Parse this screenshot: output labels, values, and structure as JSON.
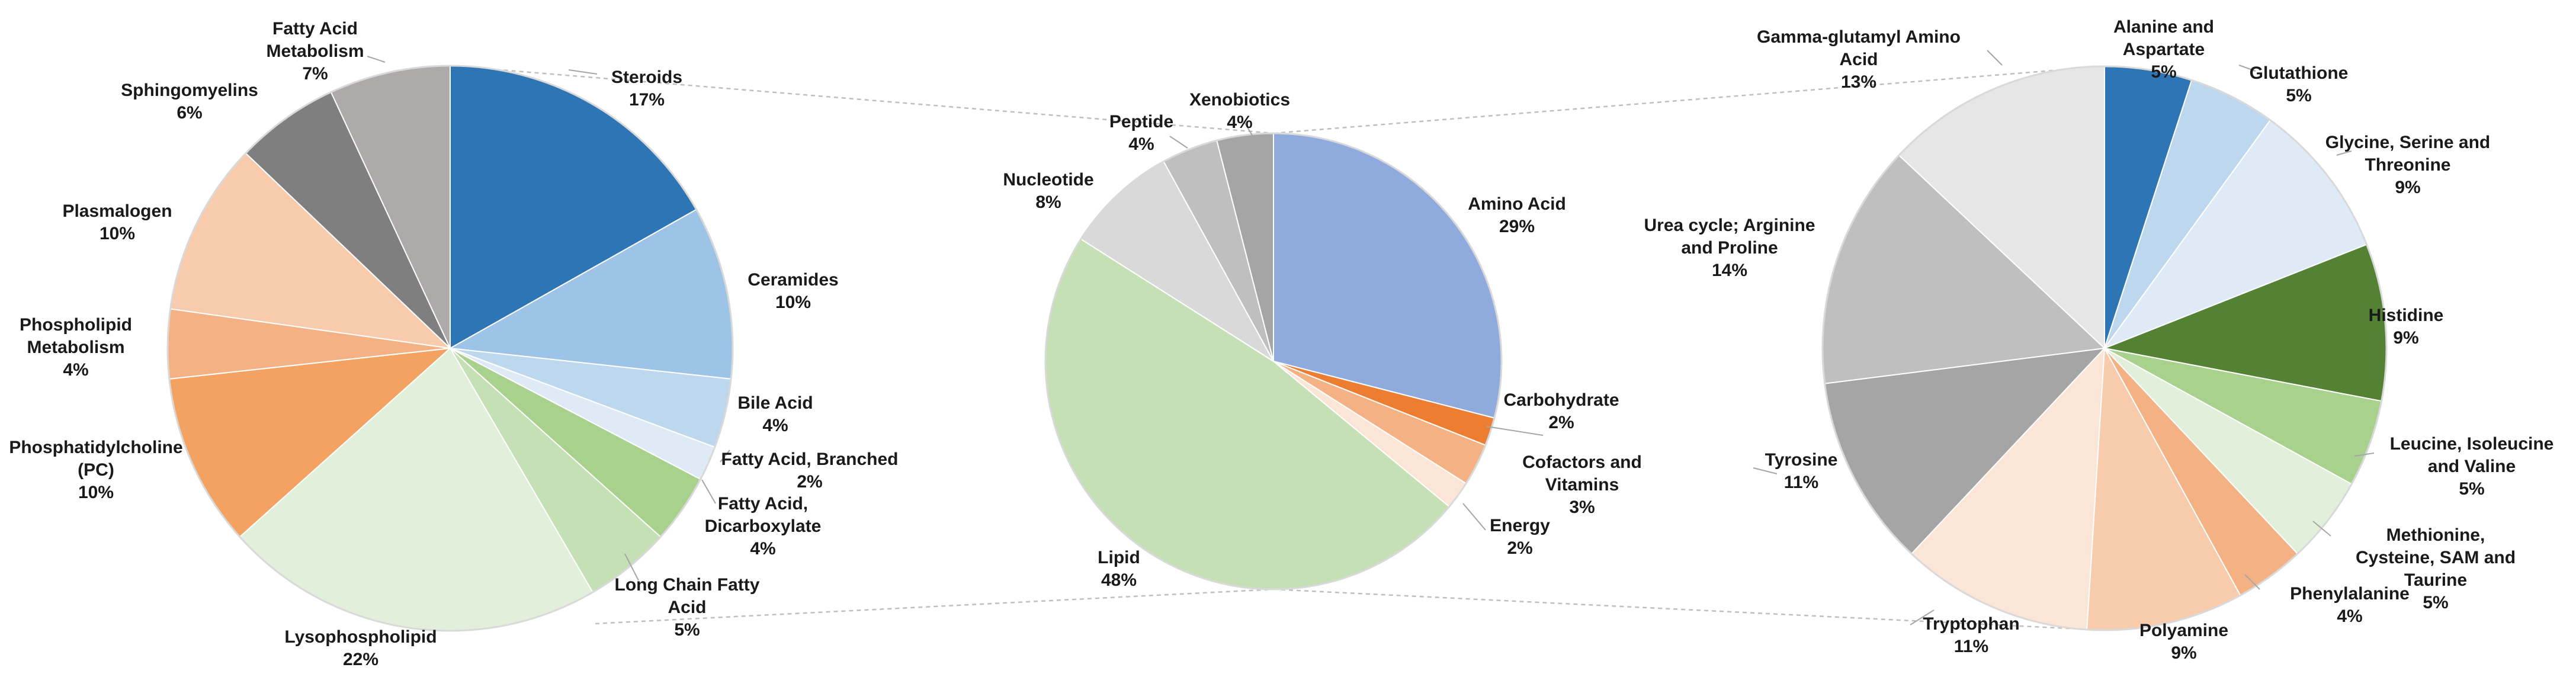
{
  "chart_data": [
    {
      "type": "pie",
      "title": "",
      "slices": [
        {
          "label": "Steroids",
          "value": 17,
          "pct": "17%",
          "color": "#2e75b6"
        },
        {
          "label": "Ceramides",
          "value": 10,
          "pct": "10%",
          "color": "#9dc3e6"
        },
        {
          "label": "Bile Acid",
          "value": 4,
          "pct": "4%",
          "color": "#bdd7ee"
        },
        {
          "label": "Fatty Acid, Branched",
          "value": 2,
          "pct": "2%",
          "color": "#deebf7"
        },
        {
          "label": "Fatty Acid, Dicarboxylate",
          "value": 4,
          "pct": "4%",
          "color": "#a9d18e"
        },
        {
          "label": "Long Chain Fatty Acid",
          "value": 5,
          "pct": "5%",
          "color": "#c5e0b4"
        },
        {
          "label": "Lysophospholipid",
          "value": 22,
          "pct": "22%",
          "color": "#e2efda"
        },
        {
          "label": "Phosphatidylcholine (PC)",
          "value": 10,
          "pct": "10%",
          "color": "#f4a261"
        },
        {
          "label": "Phospholipid Metabolism",
          "value": 4,
          "pct": "4%",
          "color": "#f4b183"
        },
        {
          "label": "Plasmalogen",
          "value": 10,
          "pct": "10%",
          "color": "#f8cbad"
        },
        {
          "label": "Sphingomyelins",
          "value": 6,
          "pct": "6%",
          "color": "#7f7f7f"
        },
        {
          "label": "Fatty Acid Metabolism",
          "value": 7,
          "pct": "7%",
          "color": "#aeaaaa"
        }
      ]
    },
    {
      "type": "pie",
      "title": "",
      "slices": [
        {
          "label": "Amino Acid",
          "value": 29,
          "pct": "29%",
          "color": "#8faadc"
        },
        {
          "label": "Carbohydrate",
          "value": 2,
          "pct": "2%",
          "color": "#ed7d31"
        },
        {
          "label": "Cofactors and Vitamins",
          "value": 3,
          "pct": "3%",
          "color": "#f4b183"
        },
        {
          "label": "Energy",
          "value": 2,
          "pct": "2%",
          "color": "#fbe5d6"
        },
        {
          "label": "Lipid",
          "value": 48,
          "pct": "48%",
          "color": "#c5e0b4"
        },
        {
          "label": "Nucleotide",
          "value": 8,
          "pct": "8%",
          "color": "#d9d9d9"
        },
        {
          "label": "Peptide",
          "value": 4,
          "pct": "4%",
          "color": "#bfbfbf"
        },
        {
          "label": "Xenobiotics",
          "value": 4,
          "pct": "4%",
          "color": "#a5a5a5"
        }
      ]
    },
    {
      "type": "pie",
      "title": "",
      "slices": [
        {
          "label": "Alanine and Aspartate",
          "value": 5,
          "pct": "5%",
          "color": "#2e75b6"
        },
        {
          "label": "Glutathione",
          "value": 5,
          "pct": "5%",
          "color": "#bdd7ee"
        },
        {
          "label": "Glycine, Serine and Threonine",
          "value": 9,
          "pct": "9%",
          "color": "#deebf7"
        },
        {
          "label": "Histidine",
          "value": 9,
          "pct": "9%",
          "color": "#548235"
        },
        {
          "label": "Leucine, Isoleucine and Valine",
          "value": 5,
          "pct": "5%",
          "color": "#a9d18e"
        },
        {
          "label": "Methionine, Cysteine, SAM and Taurine",
          "value": 5,
          "pct": "5%",
          "color": "#e2efda"
        },
        {
          "label": "Phenylalanine",
          "value": 4,
          "pct": "4%",
          "color": "#f4b183"
        },
        {
          "label": "Polyamine",
          "value": 9,
          "pct": "9%",
          "color": "#f8cbad"
        },
        {
          "label": "Tryptophan",
          "value": 11,
          "pct": "11%",
          "color": "#fbe5d6"
        },
        {
          "label": "Tyrosine",
          "value": 11,
          "pct": "11%",
          "color": "#a5a5a5"
        },
        {
          "label": "Urea cycle; Arginine and Proline",
          "value": 14,
          "pct": "14%",
          "color": "#bfbfbf"
        },
        {
          "label": "Gamma-glutamyl Amino Acid",
          "value": 13,
          "pct": "13%",
          "color": "#e7e6e6"
        }
      ]
    }
  ]
}
